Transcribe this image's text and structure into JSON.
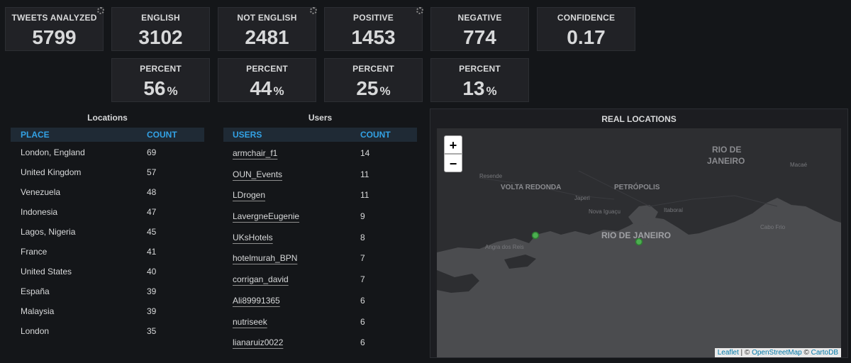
{
  "stats": [
    {
      "title": "TWEETS ANALYZED",
      "value": "5799",
      "unit": ""
    },
    {
      "title": "ENGLISH",
      "value": "3102",
      "unit": ""
    },
    {
      "title": "NOT ENGLISH",
      "value": "2481",
      "unit": ""
    },
    {
      "title": "POSITIVE",
      "value": "1453",
      "unit": ""
    },
    {
      "title": "NEGATIVE",
      "value": "774",
      "unit": ""
    },
    {
      "title": "CONFIDENCE",
      "value": "0.17",
      "unit": ""
    }
  ],
  "percents": [
    {
      "title": "PERCENT",
      "value": "56",
      "unit": "%"
    },
    {
      "title": "PERCENT",
      "value": "44",
      "unit": "%"
    },
    {
      "title": "PERCENT",
      "value": "25",
      "unit": "%"
    },
    {
      "title": "PERCENT",
      "value": "13",
      "unit": "%"
    }
  ],
  "locations": {
    "title": "Locations",
    "col1": "PLACE",
    "col2": "COUNT",
    "rows": [
      {
        "place": "London, England",
        "count": "69"
      },
      {
        "place": "United Kingdom",
        "count": "57"
      },
      {
        "place": "Venezuela",
        "count": "48"
      },
      {
        "place": "Indonesia",
        "count": "47"
      },
      {
        "place": "Lagos, Nigeria",
        "count": "45"
      },
      {
        "place": "France",
        "count": "41"
      },
      {
        "place": "United States",
        "count": "40"
      },
      {
        "place": "España",
        "count": "39"
      },
      {
        "place": "Malaysia",
        "count": "39"
      },
      {
        "place": "London",
        "count": "35"
      }
    ]
  },
  "users": {
    "title": "Users",
    "col1": "USERS",
    "col2": "COUNT",
    "rows": [
      {
        "user": "armchair_f1",
        "count": "14"
      },
      {
        "user": "OUN_Events",
        "count": "11"
      },
      {
        "user": "LDrogen",
        "count": "11"
      },
      {
        "user": "LavergneEugenie",
        "count": "9"
      },
      {
        "user": "UKsHotels",
        "count": "8"
      },
      {
        "user": "hotelmurah_BPN",
        "count": "7"
      },
      {
        "user": "corrigan_david",
        "count": "7"
      },
      {
        "user": "Ali89991365",
        "count": "6"
      },
      {
        "user": "nutriseek",
        "count": "6"
      },
      {
        "user": "lianaruiz0022",
        "count": "6"
      }
    ]
  },
  "map": {
    "title": "REAL LOCATIONS",
    "zoom_in": "+",
    "zoom_out": "−",
    "labels": {
      "rio_state_1": "RIO DE",
      "rio_state_2": "JANEIRO",
      "volta": "VOLTA REDONDA",
      "petropolis": "PETRÓPOLIS",
      "rio_city": "RIO DE JANEIRO",
      "resende": "Resende",
      "japeri": "Japeri",
      "nova_iguacu": "Nova Iguaçu",
      "itaborai": "Itaboraí",
      "macae": "Macaé",
      "cabo_frio": "Cabo Frio",
      "angra": "Angra dos Reis"
    },
    "marker_color": "#4caf50",
    "attribution": {
      "leaflet": "Leaflet",
      "sep1": " | © ",
      "osm": "OpenStreetMap",
      "sep2": " © ",
      "carto": "CartoDB"
    }
  },
  "colors": {
    "background": "#141619",
    "panel": "#212226",
    "header_text": "#33a2e5"
  }
}
